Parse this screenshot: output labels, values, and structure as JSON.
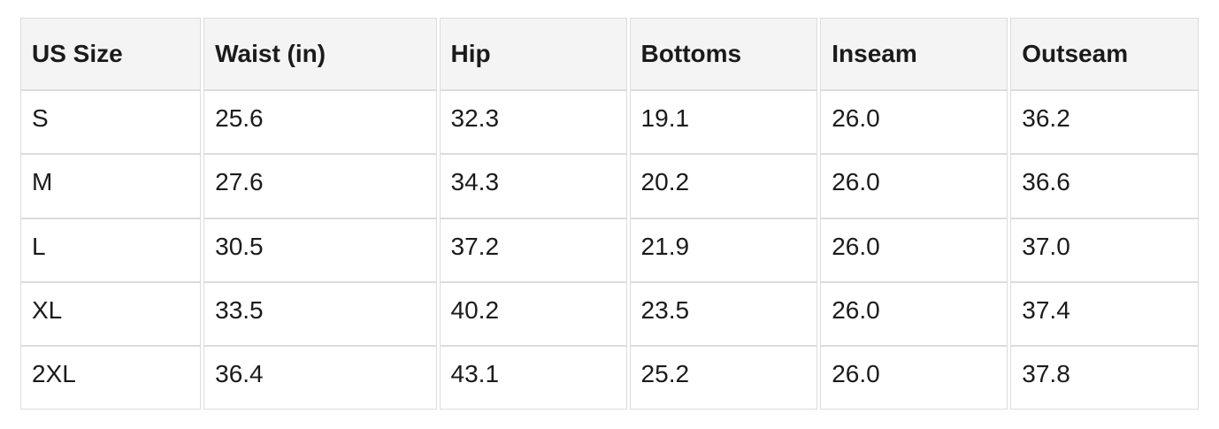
{
  "colors": {
    "page_background": "#ffffff",
    "header_background": "#f4f4f4",
    "cell_border": "#dcdcdc",
    "text": "#1b1b1b"
  },
  "table": {
    "headers": [
      "US Size",
      "Waist (in)",
      "Hip",
      "Bottoms",
      "Inseam",
      "Outseam"
    ],
    "rows": [
      [
        "S",
        "25.6",
        "32.3",
        "19.1",
        "26.0",
        "36.2"
      ],
      [
        "M",
        "27.6",
        "34.3",
        "20.2",
        "26.0",
        "36.6"
      ],
      [
        "L",
        "30.5",
        "37.2",
        "21.9",
        "26.0",
        "37.0"
      ],
      [
        "XL",
        "33.5",
        "40.2",
        "23.5",
        "26.0",
        "37.4"
      ],
      [
        "2XL",
        "36.4",
        "43.1",
        "25.2",
        "26.0",
        "37.8"
      ]
    ]
  },
  "chart_data": {
    "type": "table",
    "columns": [
      "US Size",
      "Waist (in)",
      "Hip",
      "Bottoms",
      "Inseam",
      "Outseam"
    ],
    "rows": [
      [
        "S",
        25.6,
        32.3,
        19.1,
        26.0,
        36.2
      ],
      [
        "M",
        27.6,
        34.3,
        20.2,
        26.0,
        36.6
      ],
      [
        "L",
        30.5,
        37.2,
        21.9,
        26.0,
        37.0
      ],
      [
        "XL",
        33.5,
        40.2,
        23.5,
        26.0,
        37.4
      ],
      [
        "2XL",
        36.4,
        43.1,
        25.2,
        26.0,
        37.8
      ]
    ]
  }
}
